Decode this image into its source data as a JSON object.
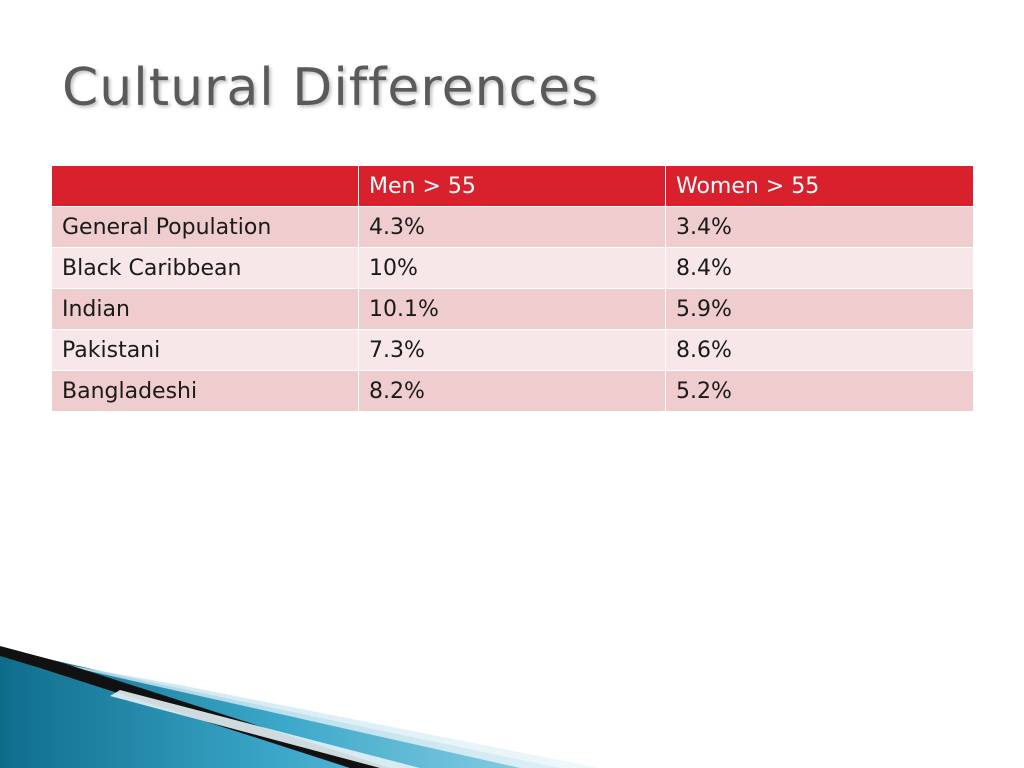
{
  "slide": {
    "title": "Cultural Differences"
  },
  "table": {
    "headers": [
      "",
      "Men > 55",
      "Women > 55"
    ],
    "rows": [
      [
        "General Population",
        "4.3%",
        "3.4%"
      ],
      [
        "Black Caribbean",
        "10%",
        "8.4%"
      ],
      [
        "Indian",
        "10.1%",
        "5.9%"
      ],
      [
        "Pakistani",
        "7.3%",
        "8.6%"
      ],
      [
        "Bangladeshi",
        "8.2%",
        "5.2%"
      ]
    ]
  },
  "colors": {
    "header_bg": "#d9212e",
    "row_odd": "#efcccd",
    "row_even": "#f7e7e8",
    "title": "#5a5a5a"
  }
}
